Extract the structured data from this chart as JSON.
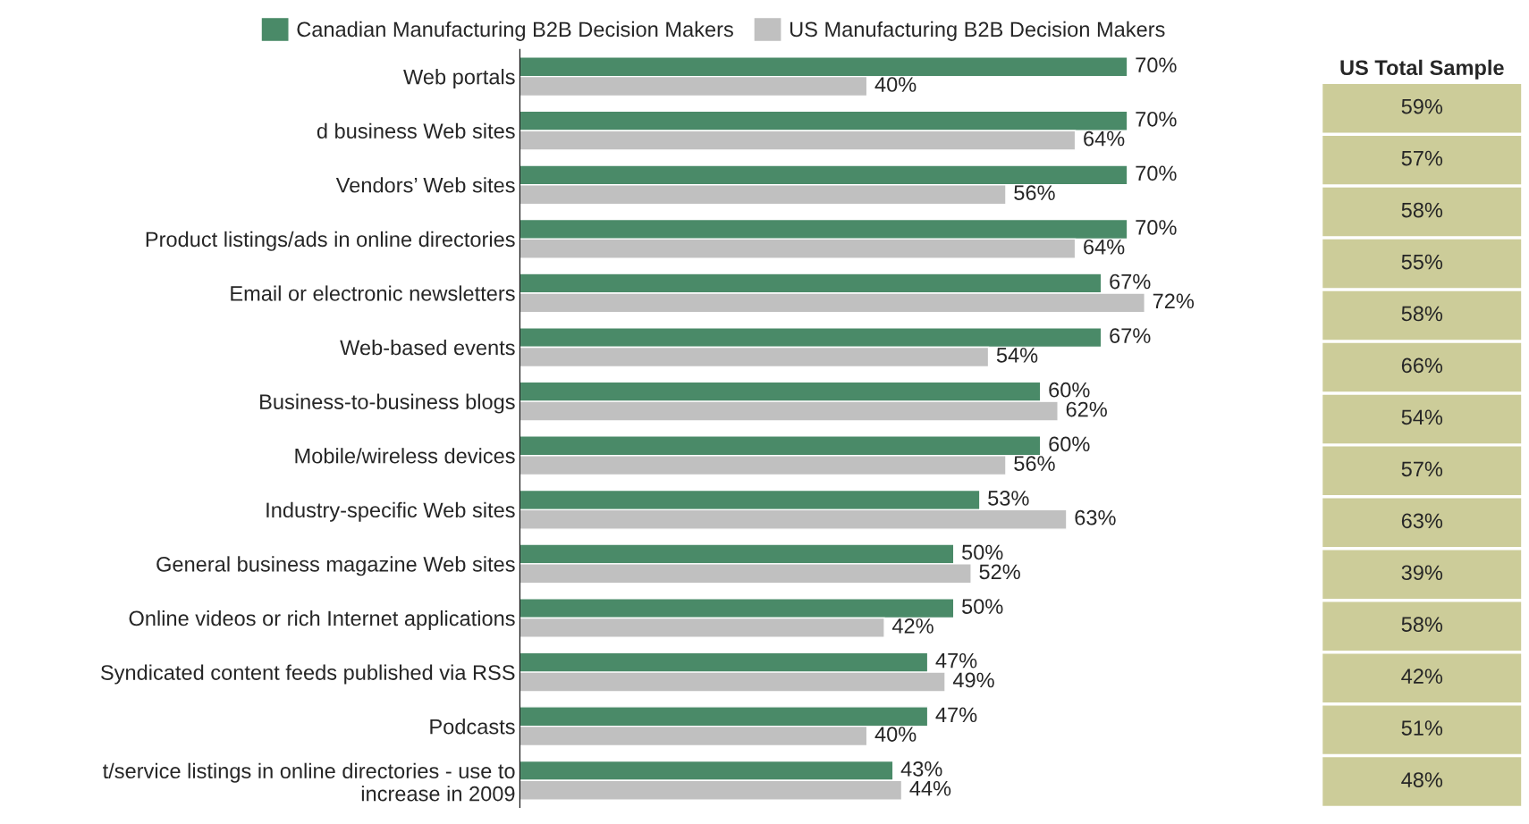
{
  "chart_data": [
    {
      "type": "bar",
      "orientation": "horizontal",
      "tick_labels": "y",
      "legend": "top left",
      "grid": false,
      "categories": [
        "Web portals",
        "d business Web sites",
        "Vendors’ Web sites",
        "Product listings/ads in online directories",
        "Email or electronic newsletters",
        "Web-based events",
        "Business-to-business blogs",
        "Mobile/wireless devices",
        "Industry-specific Web sites",
        "General business magazine Web sites",
        "Online videos or rich Internet applications",
        "Syndicated content feeds published via RSS",
        "Podcasts",
        "t/service listings in online directories - use to\nincrease in 2009"
      ],
      "series": [
        {
          "name": "Canadian Manufacturing B2B Decision Makers",
          "color": "#4a8a68",
          "values": [
            70,
            70,
            70,
            70,
            67,
            67,
            60,
            60,
            53,
            50,
            50,
            47,
            47,
            43
          ],
          "value_labels": [
            "70%",
            "70%",
            "70%",
            "70%",
            "67%",
            "67%",
            "60%",
            "60%",
            "53%",
            "50%",
            "50%",
            "47%",
            "47%",
            "43%"
          ]
        },
        {
          "name": "US Manufacturing B2B Decision Makers",
          "color": "#c0c0c0",
          "values": [
            40,
            64,
            56,
            64,
            72,
            54,
            62,
            56,
            63,
            52,
            42,
            49,
            40,
            44
          ],
          "value_labels": [
            "40%",
            "64%",
            "56%",
            "64%",
            "72%",
            "54%",
            "62%",
            "56%",
            "63%",
            "52%",
            "42%",
            "49%",
            "40%",
            "44%"
          ]
        }
      ]
    },
    {
      "type": "other",
      "title": "US Total Sample",
      "color": "#cccc99",
      "annotations": [
        "59%",
        "57%",
        "58%",
        "55%",
        "58%",
        "66%",
        "54%",
        "57%",
        "63%",
        "39%",
        "58%",
        "42%",
        "51%",
        "48%"
      ]
    }
  ]
}
